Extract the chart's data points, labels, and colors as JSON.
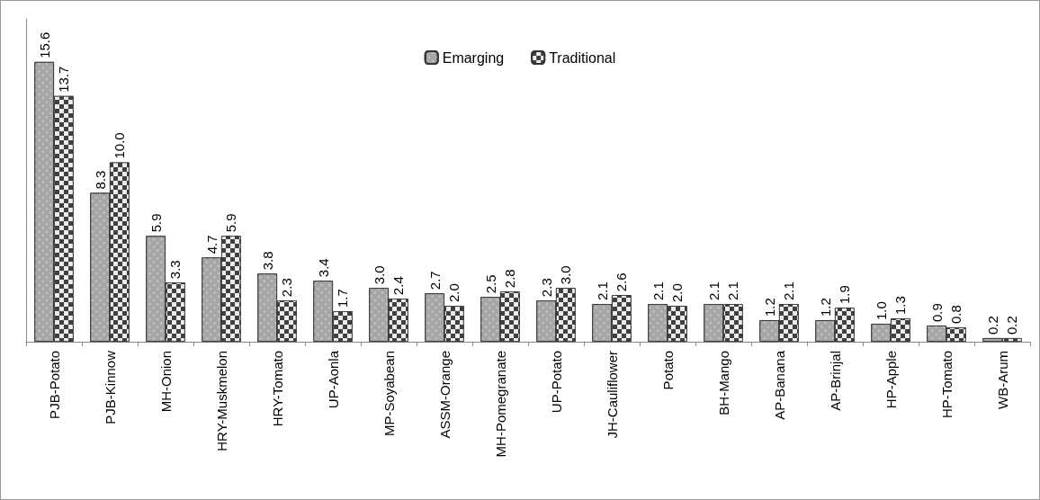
{
  "chart_data": {
    "type": "bar",
    "categories": [
      "PJB-Potato",
      "PJB-Kinnow",
      "MH-Onion",
      "HRY-Muskmelon",
      "HRY-Tomato",
      "UP-Aonla",
      "MP-Soyabean",
      "ASSM-Orange",
      "MH-Pomegranate",
      "UP-Potato",
      "JH-Cauliflower",
      "Potato",
      "BH-Mango",
      "AP-Banana",
      "AP-Brinjal",
      "HP-Apple",
      "HP-Tomato",
      "WB-Arum"
    ],
    "series": [
      {
        "name": "Emarging",
        "color": "#a6a6a6",
        "values": [
          15.6,
          8.3,
          5.9,
          4.7,
          3.8,
          3.4,
          3.0,
          2.7,
          2.5,
          2.3,
          2.1,
          2.1,
          2.1,
          1.2,
          1.2,
          1.0,
          0.9,
          0.2
        ],
        "value_labels": [
          "15.6",
          "8.3",
          "5.9",
          "4.7",
          "3.8",
          "3.4",
          "3.0",
          "2.7",
          "2.5",
          "2.3",
          "2.1",
          "2.1",
          "2.1",
          "1.2",
          "1.2",
          "1.0",
          "0.9",
          "0.2"
        ]
      },
      {
        "name": "Traditional",
        "color": "#404040",
        "values": [
          13.7,
          10.0,
          3.3,
          5.9,
          2.3,
          1.7,
          2.4,
          2.0,
          2.8,
          3.0,
          2.6,
          2.0,
          2.1,
          2.1,
          1.9,
          1.3,
          0.8,
          0.2
        ],
        "value_labels": [
          "13.7",
          "10.0",
          "3.3",
          "5.9",
          "2.3",
          "1.7",
          "2.4",
          "2.0",
          "2.8",
          "3.0",
          "2.6",
          "2.0",
          "2.1",
          "2.1",
          "1.9",
          "1.3",
          "0.8",
          "0.2"
        ]
      }
    ],
    "legend": "top",
    "grid": false
  }
}
